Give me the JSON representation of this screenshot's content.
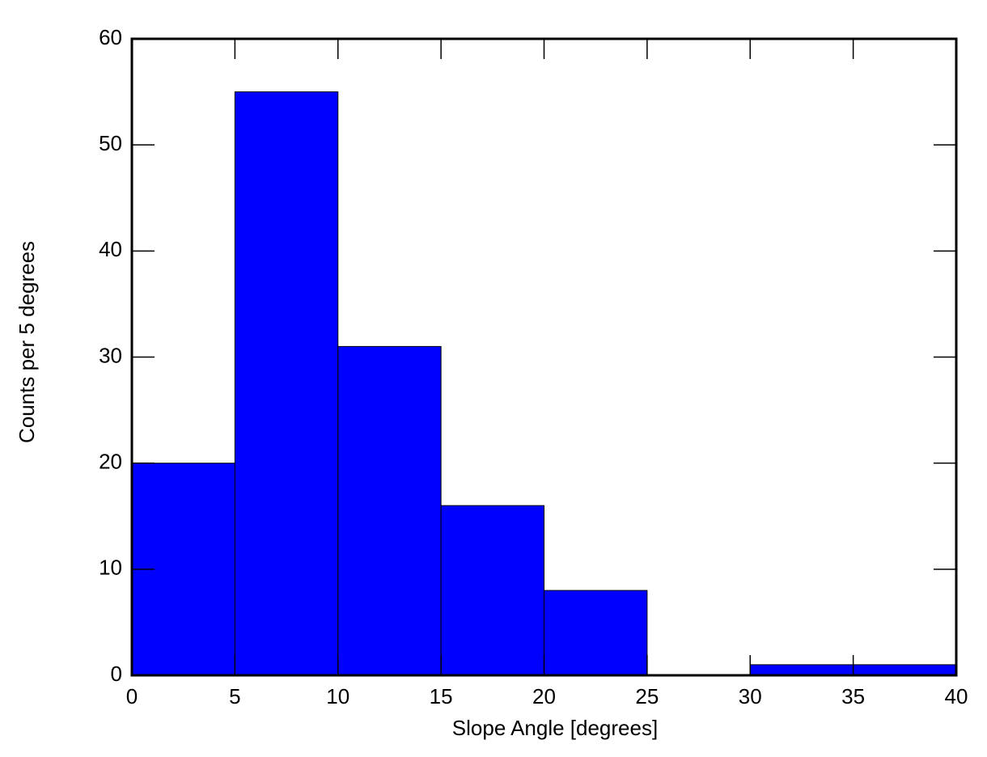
{
  "chart_data": {
    "type": "histogram",
    "x_label": "Slope Angle [degrees]",
    "y_label": "Counts per 5 degrees",
    "bins": [
      0,
      5,
      10,
      15,
      20,
      25,
      30,
      35,
      40
    ],
    "values": [
      20,
      55,
      31,
      16,
      8,
      0,
      1,
      1
    ],
    "color": "#0000ff",
    "xlim": [
      0,
      40
    ],
    "xticks": [
      0,
      5,
      10,
      15,
      20,
      25,
      30,
      35,
      40
    ],
    "ylim": [
      0,
      60
    ],
    "yticks": [
      0,
      10,
      20,
      30,
      40,
      50,
      60
    ]
  }
}
